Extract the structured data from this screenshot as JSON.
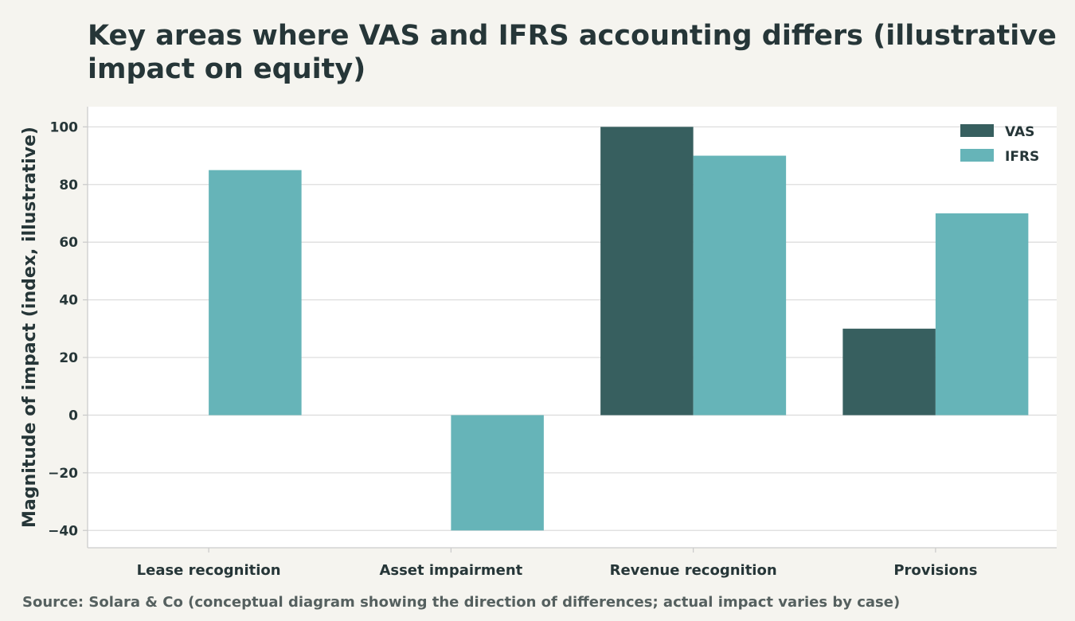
{
  "chart_data": {
    "type": "bar",
    "title_lines": [
      "Key areas where VAS and IFRS accounting differs (illustrative",
      "impact on equity)"
    ],
    "xlabel": "",
    "ylabel": "Magnitude of impact (index, illustrative)",
    "categories": [
      "Lease recognition",
      "Asset impairment",
      "Revenue recognition",
      "Provisions"
    ],
    "series": [
      {
        "name": "VAS",
        "values": [
          0,
          0,
          100,
          30
        ],
        "color": "#375f5f"
      },
      {
        "name": "IFRS",
        "values": [
          85,
          -40,
          90,
          70
        ],
        "color": "#66b4b8"
      }
    ],
    "ylim": [
      -46,
      107
    ],
    "yticks": [
      100,
      80,
      60,
      40,
      20,
      0,
      -20,
      -40
    ],
    "ytick_labels": [
      "100",
      "80",
      "60",
      "40",
      "20",
      "0",
      "−20",
      "−40"
    ],
    "grid": true,
    "legend": "top-right",
    "source": "Source: Solara & Co (conceptual diagram showing the direction of differences; actual impact varies by case)"
  }
}
